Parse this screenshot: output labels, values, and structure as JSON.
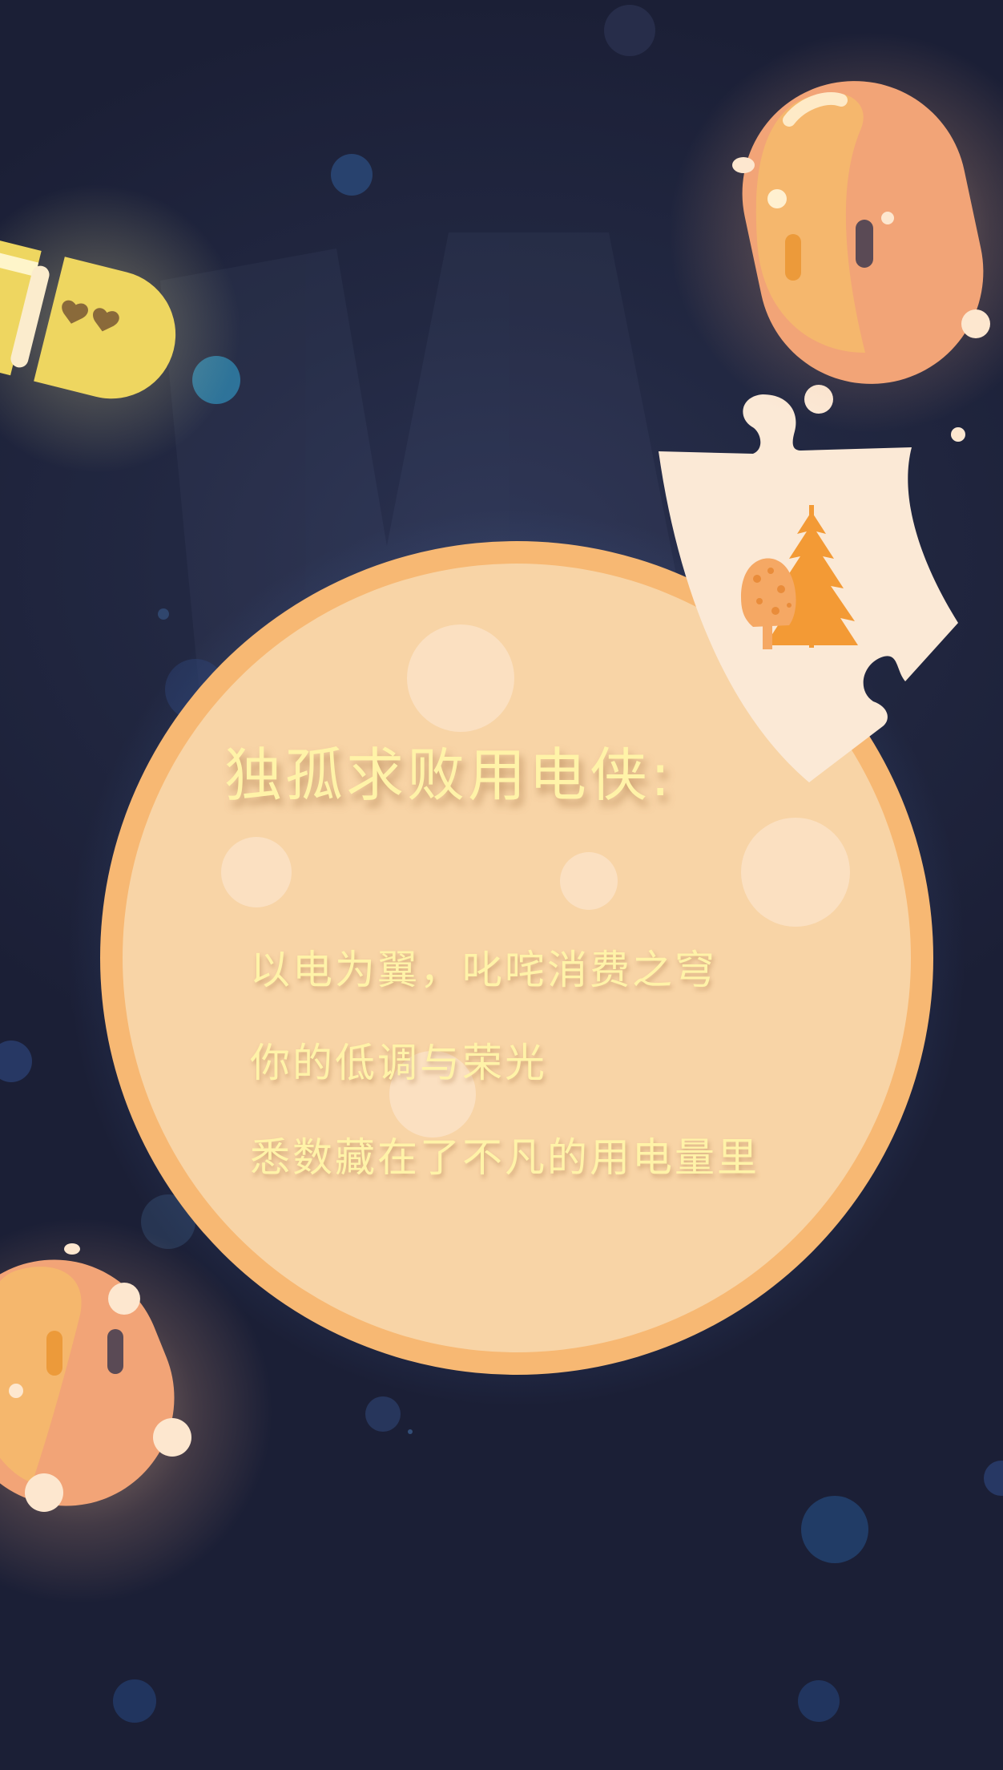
{
  "poster": {
    "title": "独孤求败用电侠:",
    "lines": [
      "以电为翼，叱咤消费之穹",
      "你的低调与荣光",
      "悉数藏在了不凡的用电量里"
    ]
  },
  "colors": {
    "background": "#1c2038",
    "moon_fill": "#f8d4a6",
    "moon_ring": "#f7b873",
    "text": "#fff3a8",
    "puzzle_piece": "#fbe9d6",
    "tree": "#f39a35",
    "bean_orange": "#f2a477",
    "bean_yellow": "#eed660"
  },
  "decorations": [
    "yellow-capsule-character",
    "orange-bean-character-top",
    "orange-bean-character-bottom",
    "puzzle-piece-with-tree",
    "bokeh-dots"
  ]
}
